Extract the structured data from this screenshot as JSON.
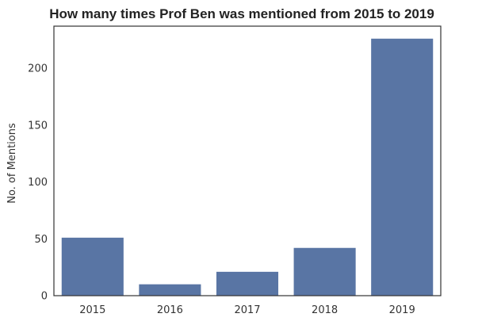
{
  "chart_data": {
    "type": "bar",
    "title": "How many times Prof Ben was mentioned from 2015 to 2019",
    "xlabel": "",
    "ylabel": "No. of Mentions",
    "categories": [
      "2015",
      "2016",
      "2017",
      "2018",
      "2019"
    ],
    "values": [
      51,
      10,
      21,
      42,
      226
    ],
    "ylim": [
      0,
      237
    ],
    "yticks": [
      0,
      50,
      100,
      150,
      200
    ],
    "bar_color": "#5975a4",
    "grid": false
  }
}
